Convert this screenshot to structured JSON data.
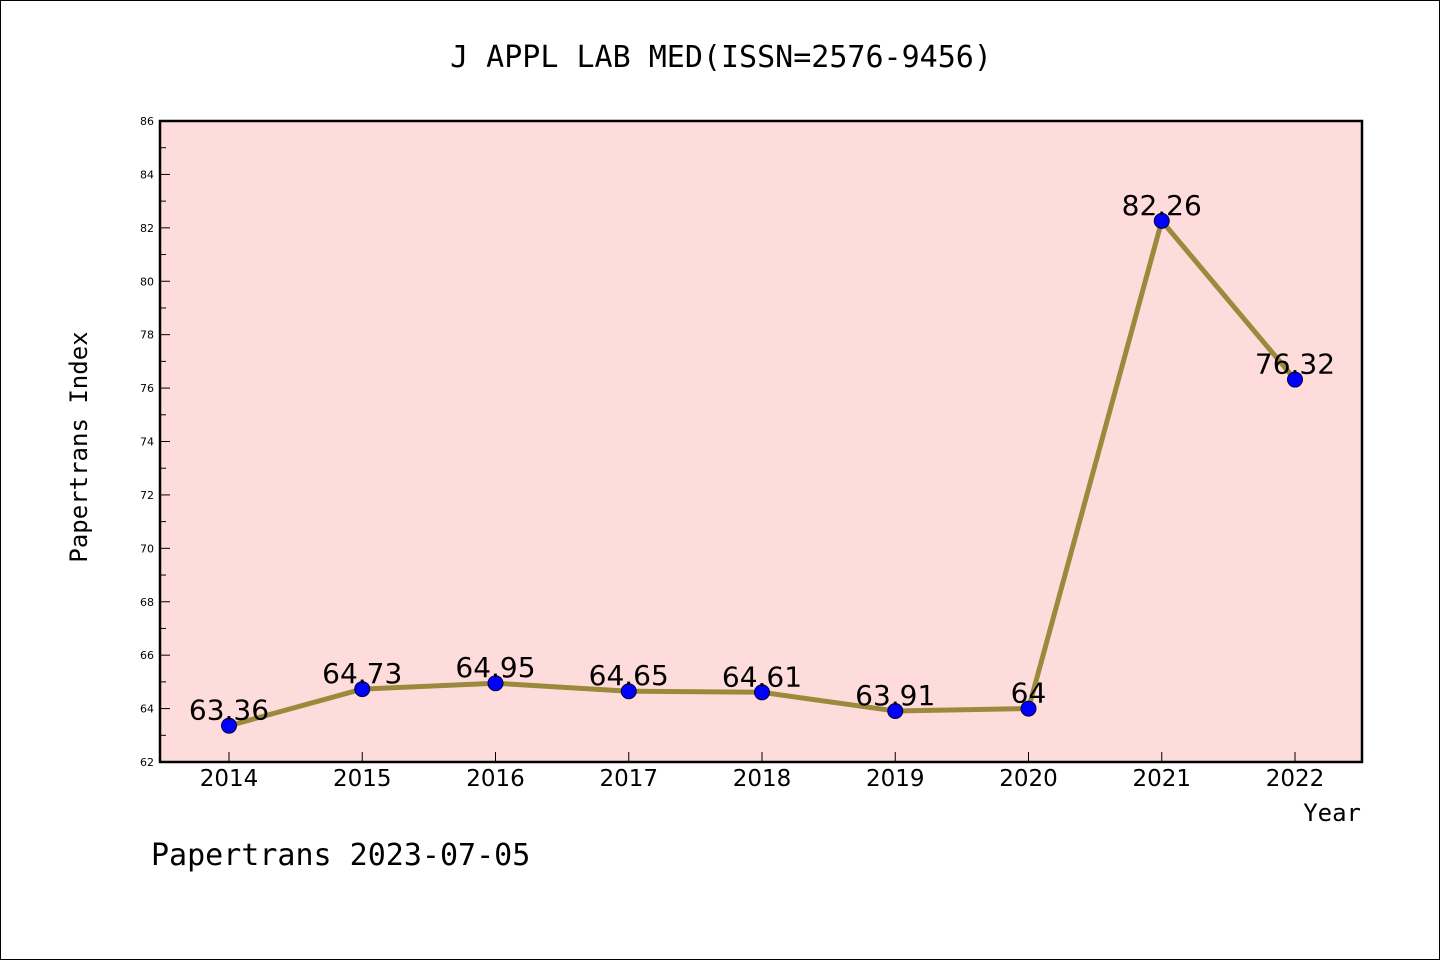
{
  "chart_data": {
    "type": "line",
    "title": "J APPL LAB MED(ISSN=2576-9456)",
    "xlabel": "Year",
    "ylabel": "Papertrans Index",
    "footer": "Papertrans 2023-07-05",
    "categories": [
      "2014",
      "2015",
      "2016",
      "2017",
      "2018",
      "2019",
      "2020",
      "2021",
      "2022"
    ],
    "series": [
      {
        "values": [
          63.36,
          64.73,
          64.95,
          64.65,
          64.61,
          63.91,
          64,
          82.26,
          76.32
        ],
        "labels": [
          "63.36",
          "64.73",
          "64.95",
          "64.65",
          "64.61",
          "63.91",
          "64",
          "82.26",
          "76.32"
        ]
      }
    ],
    "ylim": [
      62,
      86
    ],
    "yticks": [
      "62",
      "64",
      "66",
      "68",
      "70",
      "72",
      "74",
      "76",
      "78",
      "80",
      "82",
      "84",
      "86"
    ],
    "grid": false,
    "legend": "none",
    "colors": {
      "plot_background": "#ffdcdc",
      "line": "#9b8a3c",
      "marker": "#0000ff",
      "text": "#000000"
    }
  }
}
